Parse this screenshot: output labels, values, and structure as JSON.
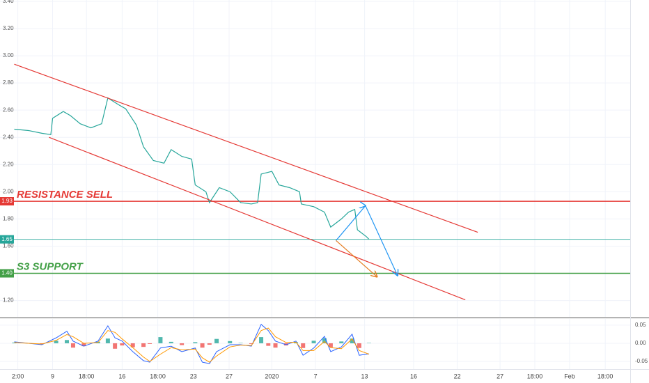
{
  "chart_data": [
    {
      "type": "line",
      "x": [
        4.7,
        6.3,
        7.8,
        8.8,
        9.0,
        10.2,
        11.0,
        12.1,
        13.3,
        14.5,
        15.2,
        16.4,
        17.2,
        18.4,
        19.2,
        20.3,
        21.5,
        22.3,
        23.5,
        24.6,
        25.0,
        26.2,
        26.6,
        27.7,
        28.9,
        30.1,
        31.3,
        32.0,
        32.4,
        33.6,
        34.4,
        35.6,
        36.7,
        36.9,
        38.3,
        39.5,
        40.2,
        41.4,
        42.2,
        42.9,
        43.2,
        44.2,
        44.5
      ],
      "series": [
        {
          "color": "#26a69a",
          "values": [
            2.46,
            2.45,
            2.43,
            2.42,
            2.54,
            2.59,
            2.56,
            2.5,
            2.47,
            2.5,
            2.69,
            2.64,
            2.61,
            2.49,
            2.33,
            2.23,
            2.21,
            2.31,
            2.26,
            2.24,
            2.05,
            2.0,
            1.92,
            2.03,
            2.0,
            1.92,
            1.91,
            1.92,
            2.13,
            2.15,
            2.05,
            2.03,
            2.0,
            1.91,
            1.89,
            1.85,
            1.74,
            1.8,
            1.85,
            1.87,
            1.72,
            1.67,
            1.65
          ]
        }
      ],
      "xlim": [
        3.1,
        73.8
      ],
      "ylim": [
        1.08,
        3.41
      ],
      "yticks": [
        {
          "value": 3.4,
          "label": "3.40"
        },
        {
          "value": 3.2,
          "label": "3.20"
        },
        {
          "value": 3.0,
          "label": "3.00"
        },
        {
          "value": 2.8,
          "label": "2.80"
        },
        {
          "value": 2.6,
          "label": "2.60"
        },
        {
          "value": 2.4,
          "label": "2.40"
        },
        {
          "value": 2.2,
          "label": "2.20"
        },
        {
          "value": 2.0,
          "label": "2.00"
        },
        {
          "value": 1.8,
          "label": "1.80"
        },
        {
          "value": 1.6,
          "label": "1.60"
        },
        {
          "value": 1.2,
          "label": "1.20"
        }
      ],
      "xticks": [
        {
          "value": 5.1,
          "label": "2:00"
        },
        {
          "value": 9.0,
          "label": "9"
        },
        {
          "value": 12.8,
          "label": "18:00"
        },
        {
          "value": 16.8,
          "label": "16"
        },
        {
          "value": 20.8,
          "label": "18:00"
        },
        {
          "value": 24.8,
          "label": "23"
        },
        {
          "value": 28.8,
          "label": "27"
        },
        {
          "value": 33.6,
          "label": "2020"
        },
        {
          "value": 38.5,
          "label": "7"
        },
        {
          "value": 44.0,
          "label": "13"
        },
        {
          "value": 49.5,
          "label": "16"
        },
        {
          "value": 54.4,
          "label": "22"
        },
        {
          "value": 59.2,
          "label": "27"
        },
        {
          "value": 63.1,
          "label": "18:00"
        },
        {
          "value": 67.0,
          "label": "Feb"
        },
        {
          "value": 71.0,
          "label": "18:00"
        }
      ],
      "grid": true,
      "hlines": [
        {
          "value": 1.93,
          "label": "1.93",
          "color": "#e53935",
          "text": "RESISTANCE SELL"
        },
        {
          "value": 1.65,
          "label": "1.65",
          "color": "#26a69a"
        },
        {
          "value": 1.4,
          "label": "1.40",
          "color": "#43a047",
          "text": "S3 SUPPORT"
        }
      ],
      "trendlines": [
        {
          "color": "#e53935",
          "x": [
            4.7,
            56.7
          ],
          "y": [
            2.938,
            1.702
          ]
        },
        {
          "color": "#e53935",
          "x": [
            8.6,
            55.3
          ],
          "y": [
            2.4,
            1.205
          ]
        },
        {
          "color": "#2196f3",
          "x": [
            40.8,
            44.1,
            47.7
          ],
          "y": [
            1.641,
            1.897,
            1.384
          ]
        },
        {
          "color": "#e67e22",
          "x": [
            40.8,
            45.4
          ],
          "y": [
            1.641,
            1.374
          ]
        }
      ]
    },
    {
      "type": "oscillator",
      "x": [
        4.7,
        7.8,
        9.4,
        10.6,
        11.3,
        12.5,
        14.1,
        15.2,
        16.0,
        16.8,
        18.0,
        19.2,
        19.9,
        21.1,
        22.3,
        23.5,
        25.0,
        25.8,
        26.6,
        27.4,
        28.9,
        30.1,
        31.3,
        32.4,
        33.2,
        34.0,
        35.2,
        36.3,
        37.1,
        38.3,
        39.5,
        40.2,
        41.4,
        42.6,
        43.4,
        44.5
      ],
      "series": [
        {
          "color": "#2962ff",
          "values": [
            0.004,
            -0.004,
            0.015,
            0.033,
            0.006,
            -0.008,
            0.006,
            0.048,
            0.015,
            0.006,
            -0.023,
            -0.048,
            -0.052,
            -0.013,
            -0.008,
            -0.023,
            -0.013,
            -0.052,
            -0.056,
            -0.023,
            -0.004,
            -0.004,
            -0.008,
            0.052,
            0.035,
            0.006,
            -0.004,
            0.006,
            -0.033,
            -0.013,
            0.019,
            -0.023,
            -0.01,
            0.025,
            -0.033,
            -0.029
          ]
        },
        {
          "color": "#ff9800",
          "values": [
            0.002,
            -0.002,
            0.008,
            0.024,
            0.018,
            0.0,
            0.002,
            0.035,
            0.03,
            0.012,
            -0.012,
            -0.038,
            -0.05,
            -0.03,
            -0.012,
            -0.018,
            -0.016,
            -0.04,
            -0.052,
            -0.035,
            -0.01,
            -0.005,
            -0.006,
            0.035,
            0.042,
            0.018,
            0.002,
            0.003,
            -0.02,
            -0.02,
            0.005,
            -0.012,
            -0.015,
            0.012,
            -0.02,
            -0.03
          ]
        }
      ],
      "histogram": {
        "up_color": "#26a69a",
        "down_color": "#ef5350",
        "values": [
          0.002,
          -0.002,
          0.007,
          0.009,
          -0.012,
          -0.008,
          0.004,
          0.013,
          -0.015,
          -0.006,
          -0.011,
          -0.01,
          -0.002,
          0.017,
          0.004,
          -0.005,
          0.003,
          -0.012,
          -0.004,
          0.012,
          0.006,
          0.001,
          -0.002,
          0.017,
          -0.007,
          -0.012,
          -0.006,
          0.003,
          -0.013,
          0.007,
          0.014,
          -0.011,
          0.005,
          0.013,
          -0.013,
          0.001
        ]
      },
      "xlim": [
        3.1,
        73.8
      ],
      "ylim": [
        -0.071,
        0.067
      ],
      "yticks": [
        {
          "value": 0.05,
          "label": "0.05"
        },
        {
          "value": 0,
          "label": "0.00"
        },
        {
          "value": -0.05,
          "label": "-0.05"
        }
      ],
      "grid": true
    }
  ]
}
